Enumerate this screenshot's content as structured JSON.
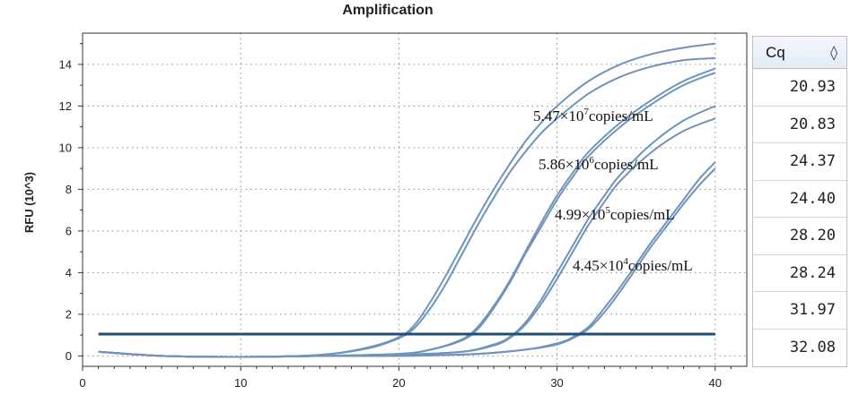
{
  "chart_data": {
    "type": "line",
    "title": "Amplification",
    "xlabel": "",
    "ylabel": "RFU (10^3)",
    "xlim": [
      0,
      42
    ],
    "ylim": [
      -0.5,
      15.5
    ],
    "xticks": [
      0,
      10,
      20,
      30,
      40
    ],
    "yticks": [
      0,
      2,
      4,
      6,
      8,
      10,
      12,
      14
    ],
    "grid": true,
    "threshold": 1.05,
    "annotations": [
      {
        "mantissa": "5.47×10",
        "exponent": "7",
        "unit": "copies/mL"
      },
      {
        "mantissa": "5.86×10",
        "exponent": "6",
        "unit": "copies/mL"
      },
      {
        "mantissa": "4.99×10",
        "exponent": "5",
        "unit": "copies/mL"
      },
      {
        "mantissa": "4.45×10",
        "exponent": "4",
        "unit": "copies/mL"
      }
    ],
    "series": [
      {
        "x": [
          1,
          5,
          10,
          15,
          18,
          20,
          21,
          22,
          23,
          24,
          25,
          26,
          27,
          28,
          29,
          30,
          32,
          34,
          36,
          38,
          40
        ],
        "values": [
          0.2,
          0.0,
          -0.05,
          0.05,
          0.4,
          0.9,
          1.5,
          2.6,
          3.9,
          5.3,
          6.7,
          8.0,
          9.2,
          10.3,
          11.2,
          12.0,
          13.2,
          14.0,
          14.5,
          14.8,
          15.0
        ]
      },
      {
        "x": [
          1,
          5,
          10,
          15,
          18,
          20,
          21,
          22,
          23,
          24,
          25,
          26,
          27,
          28,
          29,
          30,
          32,
          34,
          36,
          38,
          40
        ],
        "values": [
          0.2,
          0.0,
          -0.05,
          0.05,
          0.35,
          0.85,
          1.35,
          2.3,
          3.5,
          4.9,
          6.3,
          7.6,
          8.8,
          9.8,
          10.7,
          11.4,
          12.6,
          13.4,
          13.9,
          14.2,
          14.3
        ]
      },
      {
        "x": [
          1,
          5,
          10,
          15,
          20,
          22,
          24,
          25,
          26,
          27,
          28,
          29,
          30,
          31,
          32,
          34,
          36,
          38,
          40
        ],
        "values": [
          0.2,
          0.0,
          -0.05,
          0.0,
          0.1,
          0.3,
          0.8,
          1.4,
          2.4,
          3.6,
          5.0,
          6.4,
          7.7,
          8.8,
          9.8,
          11.2,
          12.3,
          13.2,
          13.8
        ]
      },
      {
        "x": [
          1,
          5,
          10,
          15,
          20,
          22,
          24,
          25,
          26,
          27,
          28,
          29,
          30,
          31,
          32,
          34,
          36,
          38,
          40
        ],
        "values": [
          0.2,
          0.0,
          -0.05,
          0.0,
          0.1,
          0.3,
          0.75,
          1.3,
          2.3,
          3.5,
          4.9,
          6.2,
          7.5,
          8.6,
          9.6,
          11.0,
          12.1,
          13.0,
          13.6
        ]
      },
      {
        "x": [
          1,
          5,
          10,
          15,
          20,
          24,
          26,
          27,
          28,
          29,
          30,
          31,
          32,
          33,
          34,
          36,
          38,
          40
        ],
        "values": [
          0.2,
          0.0,
          -0.05,
          0.0,
          0.05,
          0.2,
          0.55,
          0.9,
          1.6,
          2.7,
          4.0,
          5.3,
          6.6,
          7.7,
          8.7,
          10.2,
          11.3,
          12.0
        ]
      },
      {
        "x": [
          1,
          5,
          10,
          15,
          20,
          24,
          26,
          27,
          28,
          29,
          30,
          31,
          32,
          33,
          34,
          36,
          38,
          40
        ],
        "values": [
          0.2,
          0.0,
          -0.05,
          0.0,
          0.05,
          0.2,
          0.5,
          0.85,
          1.5,
          2.5,
          3.7,
          5.0,
          6.3,
          7.4,
          8.4,
          9.8,
          10.8,
          11.4
        ]
      },
      {
        "x": [
          1,
          5,
          10,
          15,
          20,
          25,
          28,
          30,
          31,
          32,
          33,
          34,
          35,
          36,
          37,
          38,
          39,
          40
        ],
        "values": [
          0.2,
          0.0,
          -0.05,
          0.0,
          0.0,
          0.1,
          0.3,
          0.6,
          0.9,
          1.4,
          2.3,
          3.3,
          4.4,
          5.5,
          6.5,
          7.5,
          8.5,
          9.3
        ]
      },
      {
        "x": [
          1,
          5,
          10,
          15,
          20,
          25,
          28,
          30,
          31,
          32,
          33,
          34,
          35,
          36,
          37,
          38,
          39,
          40
        ],
        "values": [
          0.2,
          0.0,
          -0.05,
          0.0,
          0.0,
          0.1,
          0.3,
          0.55,
          0.85,
          1.3,
          2.1,
          3.1,
          4.2,
          5.3,
          6.3,
          7.3,
          8.2,
          9.0
        ]
      }
    ]
  },
  "cq_panel": {
    "header": "Cq",
    "sort_icon": "sort-diamond-icon",
    "values": [
      "20.93",
      "20.83",
      "24.37",
      "24.40",
      "28.20",
      "28.24",
      "31.97",
      "32.08"
    ]
  },
  "colors": {
    "curve": "#6f93bb",
    "threshold": "#1f4e79",
    "axis": "#333333",
    "grid": "#8a8a8a"
  }
}
